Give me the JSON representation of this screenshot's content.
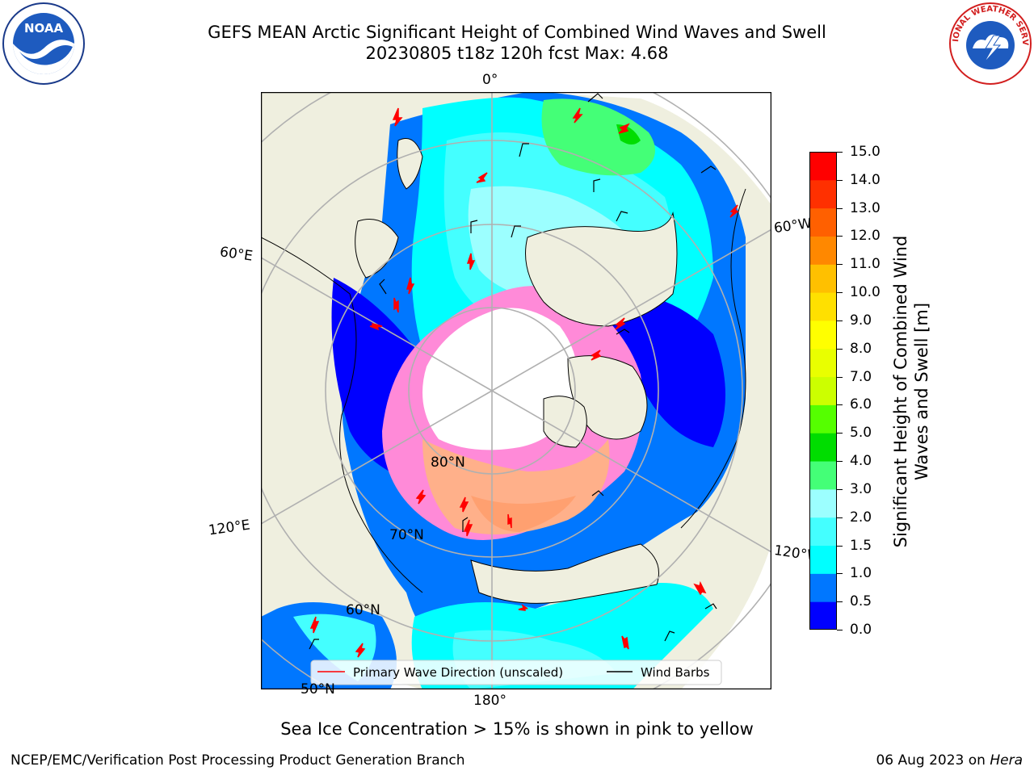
{
  "header": {
    "title_line1": "GEFS MEAN Arctic Significant Height of Combined Wind Waves and Swell",
    "title_line2": "20230805 t18z 120h fcst   Max: 4.68"
  },
  "logos": {
    "noaa": "NOAA",
    "nws": "NATIONAL WEATHER SERVICE"
  },
  "map": {
    "projection": "north-polar-stereographic",
    "longitude_labels": [
      "0°",
      "60°E",
      "60°W",
      "120°E",
      "120°W",
      "180°"
    ],
    "latitude_labels": [
      "80°N",
      "70°N",
      "60°N",
      "50°N"
    ],
    "legend": {
      "primary_wave": "Primary Wave Direction (unscaled)",
      "wind_barbs": "Wind Barbs",
      "primary_wave_color": "#ff0000",
      "wind_barbs_color": "#000000"
    },
    "colors": {
      "land": "#efefdf",
      "ice": "#ff8ad8",
      "ocean_low": "#0000ff"
    }
  },
  "colorbar": {
    "label": "Significant Height of Combined Wind Waves and Swell [m]",
    "ticks": [
      "0.0",
      "0.5",
      "1.0",
      "1.5",
      "2.0",
      "3.0",
      "4.0",
      "5.0",
      "6.0",
      "7.0",
      "8.0",
      "9.0",
      "10.0",
      "11.0",
      "12.0",
      "13.0",
      "14.0",
      "15.0"
    ],
    "colors": [
      "#0000ff",
      "#0077ff",
      "#00ffff",
      "#44ffff",
      "#9cffff",
      "#44ff77",
      "#00dd00",
      "#55ff00",
      "#ccff00",
      "#e9ff00",
      "#ffff00",
      "#ffe000",
      "#ffc000",
      "#ff8800",
      "#ff6000",
      "#ff3000",
      "#ff0000"
    ]
  },
  "notes": {
    "ice": "Sea Ice Concentration > 15% is shown in pink to yellow"
  },
  "footer": {
    "left": "NCEP/EMC/Verification Post Processing Product Generation Branch",
    "date": "06 Aug 2023 on",
    "machine": "Hera"
  }
}
